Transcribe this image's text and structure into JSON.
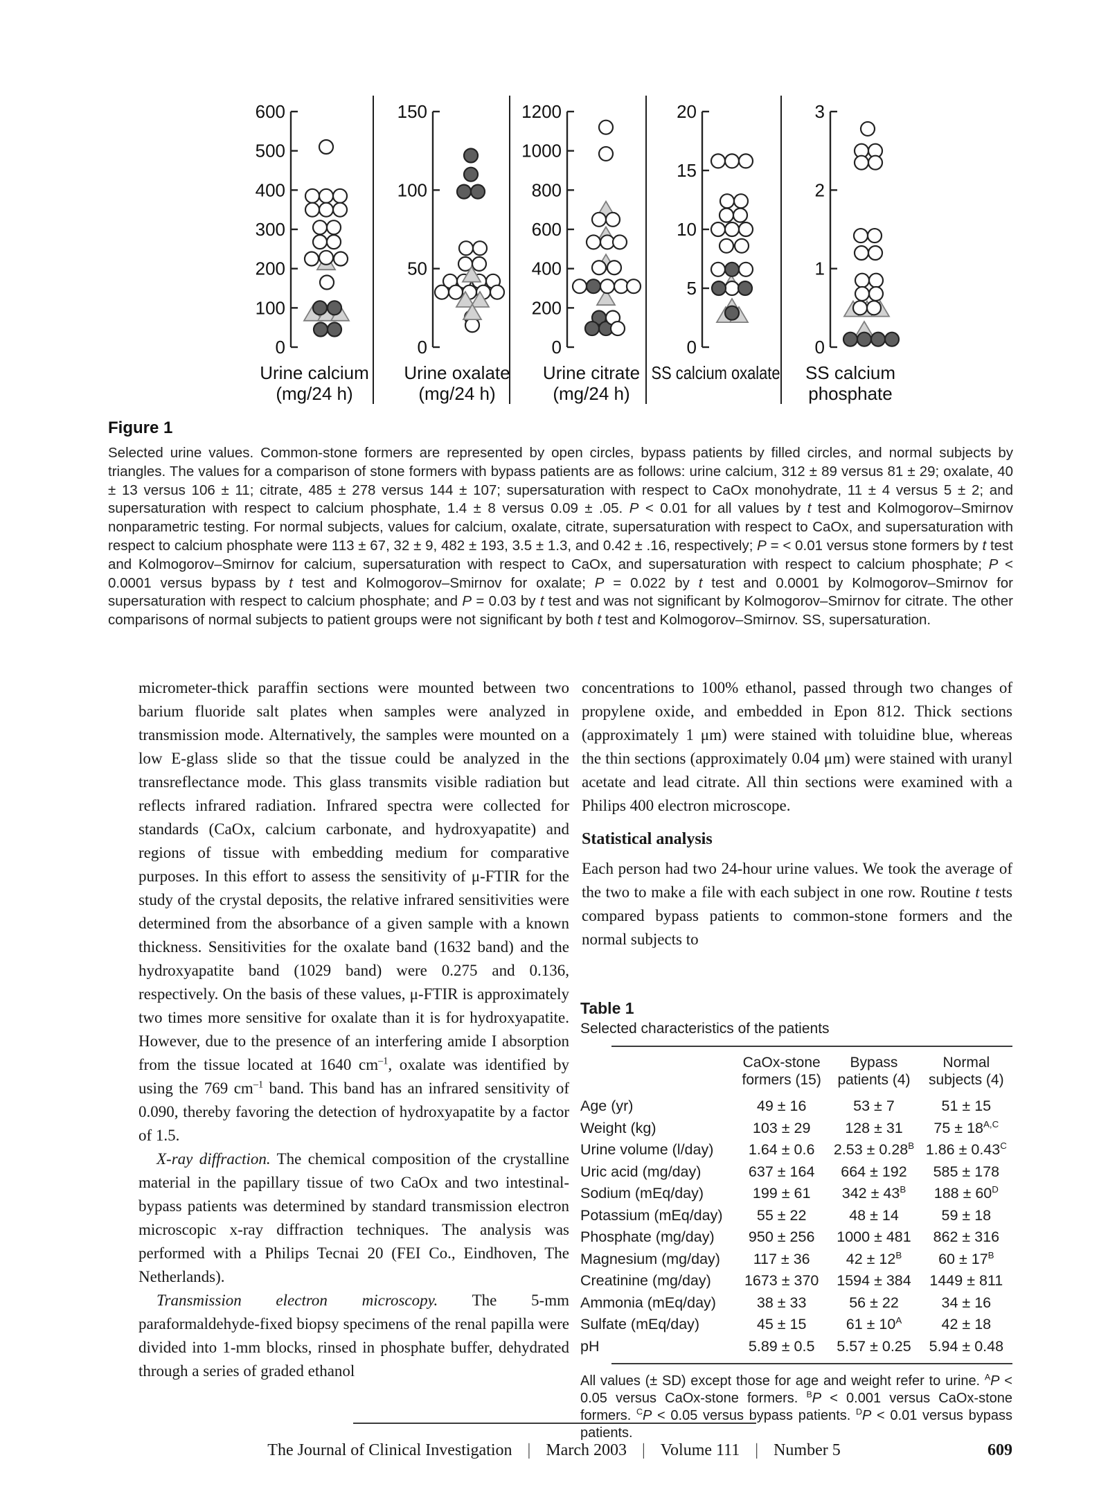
{
  "figure": {
    "caption_title": "Figure 1",
    "caption_text": "Selected urine values. Common-stone formers are represented by open circles, bypass patients by filled circles, and normal subjects by triangles. The values for a comparison of stone formers with bypass patients are as follows: urine calcium, 312 ± 89 versus 81 ± 29; oxalate, 40 ± 13 versus 106 ± 11; citrate, 485 ± 278 versus 144 ± 107; supersaturation with respect to CaOx monohydrate, 11 ± 4 versus 5 ± 2; and supersaturation with respect to calcium phosphate, 1.4 ± 8 versus 0.09 ± .05. _{P} < 0.01 for all values by _{t} test and Kolmogorov–Smirnov nonparametric testing. For normal subjects, values for calcium, oxalate, citrate, supersaturation with respect to CaOx, and supersaturation with respect to calcium phosphate were 113 ± 67, 32 ± 9, 482 ± 193, 3.5 ± 1.3, and 0.42 ± .16, respectively; _{P} = < 0.01 versus stone formers by _{t} test and Kolmogorov–Smirnov for calcium, supersaturation with respect to CaOx, and supersaturation with respect to calcium phosphate; _{P} < 0.0001 versus bypass by _{t} test and Kolmogorov–Smirnov for oxalate; _{P} = 0.022 by _{t} test and 0.0001 by Kolmogorov–Smirnov for supersaturation with respect to calcium phosphate; and _{P} = 0.03 by _{t} test and was not significant by Kolmogorov–Smirnov for citrate. The other comparisons of normal subjects to patient groups were not significant by both _{t} test and Kolmogorov–Smirnov. SS, supersaturation."
  },
  "chart_data": {
    "type": "scatter",
    "legend": {
      "open-circle": "Common-stone formers",
      "filled-circle": "Bypass patients",
      "triangle": "Normal subjects"
    },
    "colors": {
      "stroke": "#222222",
      "open_fill": "#ffffff",
      "bypass_fill": "#5e5e5e",
      "normal_fill": "#d2d2d2",
      "normal_stroke": "#7d7d7d"
    },
    "panels": [
      {
        "id": "urine-calcium",
        "xlabel_lines": [
          "Urine calcium",
          "(mg/24 h)"
        ],
        "ymax": 600,
        "yticks": [
          0,
          100,
          200,
          300,
          400,
          500,
          600
        ],
        "series": [
          {
            "group": "normal-subjects",
            "marker": "triangle",
            "points": [
              [
                215,
                0
              ],
              [
                85,
                -19
              ],
              [
                85,
                1
              ],
              [
                85,
                20
              ]
            ]
          },
          {
            "group": "stone-formers",
            "marker": "open-circle",
            "points": [
              [
                510,
                0
              ],
              [
                385,
                -20
              ],
              [
                385,
                0
              ],
              [
                385,
                20
              ],
              [
                350,
                -20
              ],
              [
                350,
                0
              ],
              [
                350,
                20
              ],
              [
                305,
                -9
              ],
              [
                305,
                11
              ],
              [
                268,
                -9
              ],
              [
                268,
                11
              ],
              [
                225,
                -21
              ],
              [
                228,
                0
              ],
              [
                225,
                21
              ],
              [
                165,
                1
              ]
            ]
          },
          {
            "group": "bypass-patients",
            "marker": "filled-circle",
            "points": [
              [
                100,
                -9
              ],
              [
                100,
                12
              ],
              [
                45,
                -8
              ],
              [
                45,
                12
              ]
            ]
          }
        ]
      },
      {
        "id": "urine-oxalate",
        "xlabel_lines": [
          "Urine oxalate",
          "(mg/24 h)"
        ],
        "ymax": 150,
        "yticks": [
          0,
          50,
          100,
          150
        ],
        "series": [
          {
            "group": "stone-formers",
            "marker": "open-circle",
            "points": [
              [
                63,
                -7
              ],
              [
                63,
                13
              ],
              [
                53,
                -8
              ],
              [
                53,
                12
              ],
              [
                42,
                -30
              ],
              [
                42,
                -10
              ],
              [
                42,
                12
              ],
              [
                42,
                32
              ],
              [
                35,
                -42
              ],
              [
                35,
                -22
              ],
              [
                35,
                -2
              ],
              [
                35,
                18
              ],
              [
                35,
                38
              ],
              [
                19,
                1
              ],
              [
                14,
                2
              ]
            ]
          },
          {
            "group": "bypass-patients",
            "marker": "filled-circle",
            "points": [
              [
                122,
                0
              ],
              [
                110,
                0
              ],
              [
                99,
                -10
              ],
              [
                99,
                10
              ]
            ]
          },
          {
            "group": "normal-subjects",
            "marker": "triangle",
            "points": [
              [
                46,
                1
              ],
              [
                30,
                -8
              ],
              [
                30,
                13
              ],
              [
                22,
                2
              ]
            ]
          }
        ]
      },
      {
        "id": "urine-citrate",
        "xlabel_lines": [
          "Urine citrate",
          "(mg/24 h)"
        ],
        "ymax": 1200,
        "yticks": [
          0,
          200,
          400,
          600,
          800,
          1000,
          1200
        ],
        "series": [
          {
            "group": "normal-subjects",
            "marker": "triangle",
            "points": [
              [
                700,
                1
              ],
              [
                570,
                1
              ],
              [
                430,
                1
              ],
              [
                250,
                1
              ]
            ]
          },
          {
            "group": "bypass-patients",
            "marker": "filled-circle",
            "points": [
              [
                310,
                -17
              ],
              [
                150,
                -9
              ],
              [
                95,
                -19
              ],
              [
                95,
                1
              ]
            ]
          },
          {
            "group": "stone-formers",
            "marker": "open-circle",
            "points": [
              [
                1120,
                1
              ],
              [
                985,
                1
              ],
              [
                650,
                -9
              ],
              [
                650,
                11
              ],
              [
                535,
                -17
              ],
              [
                535,
                3
              ],
              [
                535,
                21
              ],
              [
                405,
                -9
              ],
              [
                405,
                13
              ],
              [
                310,
                -37
              ],
              [
                310,
                3
              ],
              [
                310,
                23
              ],
              [
                310,
                41
              ],
              [
                150,
                11
              ],
              [
                95,
                18
              ]
            ]
          }
        ]
      },
      {
        "id": "ss-calcium-oxalate",
        "xlabel_lines": [
          "SS calcium oxalate"
        ],
        "ymax": 20,
        "yticks": [
          0,
          5,
          10,
          15,
          20
        ],
        "series": [
          {
            "group": "normal-subjects",
            "marker": "triangle",
            "points": [
              [
                5.4,
                -1
              ],
              [
                3.4,
                0
              ],
              [
                2.7,
                -9
              ],
              [
                2.7,
                10
              ]
            ]
          },
          {
            "group": "stone-formers",
            "marker": "open-circle",
            "points": [
              [
                15.8,
                -20
              ],
              [
                15.8,
                0
              ],
              [
                15.8,
                20
              ],
              [
                12.4,
                -7
              ],
              [
                12.4,
                13
              ],
              [
                11.2,
                -8
              ],
              [
                11.2,
                12
              ],
              [
                10,
                -20
              ],
              [
                10,
                0
              ],
              [
                10,
                20
              ],
              [
                8.6,
                -8
              ],
              [
                8.6,
                14
              ],
              [
                6.6,
                -20
              ],
              [
                6.6,
                20
              ],
              [
                5,
                0
              ]
            ]
          },
          {
            "group": "bypass-patients",
            "marker": "filled-circle",
            "points": [
              [
                6.6,
                0
              ],
              [
                5,
                -19
              ],
              [
                5,
                19
              ],
              [
                2.9,
                0
              ]
            ]
          }
        ]
      },
      {
        "id": "ss-calcium-phosphate",
        "xlabel_lines": [
          "SS calcium",
          "phosphate"
        ],
        "ymax": 3,
        "yticks": [
          0,
          1,
          2,
          3
        ],
        "series": [
          {
            "group": "normal-subjects",
            "marker": "triangle",
            "points": [
              [
                0.48,
                -26
              ],
              [
                0.48,
                -6
              ],
              [
                0.48,
                13
              ],
              [
                0.22,
                -10
              ]
            ]
          },
          {
            "group": "stone-formers",
            "marker": "open-circle",
            "points": [
              [
                2.78,
                -5
              ],
              [
                2.5,
                -14
              ],
              [
                2.5,
                6
              ],
              [
                2.35,
                -14
              ],
              [
                2.35,
                6
              ],
              [
                1.42,
                -15
              ],
              [
                1.42,
                5
              ],
              [
                1.2,
                -14
              ],
              [
                1.2,
                6
              ],
              [
                0.85,
                -13
              ],
              [
                0.85,
                7
              ],
              [
                0.68,
                -13
              ],
              [
                0.68,
                7
              ],
              [
                0.5,
                -16
              ],
              [
                0.5,
                4
              ]
            ]
          },
          {
            "group": "bypass-patients",
            "marker": "filled-circle",
            "points": [
              [
                0.1,
                -30
              ],
              [
                0.1,
                -10
              ],
              [
                0.1,
                10
              ],
              [
                0.1,
                30
              ]
            ]
          }
        ]
      }
    ]
  },
  "body": {
    "left": {
      "p1": "micrometer-thick paraffin sections were mounted between two barium fluoride salt plates when samples were analyzed in transmission mode. Alternatively, the samples were mounted on a low E-glass slide so that the tissue could be analyzed in the transreflectance mode. This glass transmits visible radiation but reflects infrared radiation. Infrared spectra were collected for standards (CaOx, calcium carbonate, and hydroxyapatite) and regions of tissue with embedding medium for comparative purposes. In this effort to assess the sensitivity of μ-FTIR for the study of the crystal deposits, the relative infrared sensitivities were determined from the absorbance of a given sample with a known thickness. Sensitivities for the oxalate band (1632 band) and the hydroxyapatite band (1029 band) were 0.275 and 0.136, respectively. On the basis of these values, μ-FTIR is approximately two times more sensitive for oxalate than it is for hydroxyapatite. However, due to the presence of an interfering amide I absorption from the tissue located at 1640 cm^{–1}, oxalate was identified by using the 769 cm^{–1} band. This band has an infrared sensitivity of 0.090, thereby favoring the detection of hydroxyapatite by a factor of 1.5.",
      "p2_lead": "X-ray diffraction.",
      "p2_text": " The chemical composition of the crystalline material in the papillary tissue of two CaOx and two intestinal-bypass patients was determined by standard transmission electron microscopic x-ray diffraction techniques. The analysis was performed with a Philips Tecnai 20 (FEI Co., Eindhoven, The Netherlands).",
      "p3_lead": "Transmission electron microscopy.",
      "p3_text": " The 5-mm paraformaldehyde-fixed biopsy specimens of the renal papilla were divided into 1-mm blocks, rinsed in phosphate buffer, dehydrated through a series of graded ethanol"
    },
    "right": {
      "p1": "concentrations to 100% ethanol, passed through two changes of propylene oxide, and embedded in Epon 812. Thick sections (approximately 1 μm) were stained with toluidine blue, whereas the thin sections (approximately 0.04 μm) were stained with uranyl acetate and lead citrate. All thin sections were examined with a Philips 400 electron microscope.",
      "heading": "Statistical analysis",
      "p2": "Each person had two 24-hour urine values. We took the average of the two to make a file with each subject in one row. Routine _{t} tests compared bypass patients to common-stone formers and the normal subjects to"
    }
  },
  "table": {
    "title": "Table 1",
    "subtitle": "Selected characteristics of the patients",
    "col_headers": [
      "CaOx-stone\nformers (15)",
      "Bypass\npatients (4)",
      "Normal\nsubjects (4)"
    ],
    "rows": [
      {
        "label": "Age (yr)",
        "values": [
          "49 ± 16",
          "53 ± 7",
          "51 ± 15"
        ]
      },
      {
        "label": "Weight (kg)",
        "values": [
          "103 ± 29",
          "128 ± 31",
          "75 ± 18^{A,C}"
        ]
      },
      {
        "label": "Urine volume (l/day)",
        "values": [
          "1.64 ± 0.6",
          "2.53 ± 0.28^{B}",
          "1.86 ± 0.43^{C}"
        ]
      },
      {
        "label": "Uric acid (mg/day)",
        "values": [
          "637 ± 164",
          "664 ± 192",
          "585 ± 178"
        ]
      },
      {
        "label": "Sodium (mEq/day)",
        "values": [
          "199 ± 61",
          "342 ± 43^{B}",
          "188 ± 60^{D}"
        ]
      },
      {
        "label": "Potassium (mEq/day)",
        "values": [
          "55 ± 22",
          "48 ± 14",
          "59 ± 18"
        ]
      },
      {
        "label": "Phosphate (mg/day)",
        "values": [
          "950 ± 256",
          "1000 ± 481",
          "862 ± 316"
        ]
      },
      {
        "label": "Magnesium (mg/day)",
        "values": [
          "117 ± 36",
          "42 ± 12^{B}",
          "60 ± 17^{B}"
        ]
      },
      {
        "label": "Creatinine (mg/day)",
        "values": [
          "1673 ± 370",
          "1594 ± 384",
          "1449 ± 811"
        ]
      },
      {
        "label": "Ammonia (mEq/day)",
        "values": [
          "38 ± 33",
          "56 ± 22",
          "34 ± 16"
        ]
      },
      {
        "label": "Sulfate (mEq/day)",
        "values": [
          "45 ± 15",
          "61 ± 10^{A}",
          "42 ± 18"
        ]
      },
      {
        "label": "pH",
        "values": [
          "5.89 ± 0.5",
          "5.57 ± 0.25",
          "5.94 ± 0.48"
        ]
      }
    ],
    "footnote": "All values (± SD) except those for age and weight refer to urine. ^{A}_{P} < 0.05 versus CaOx-stone formers. ^{B}_{P} < 0.001 versus CaOx-stone formers. ^{C}_{P} < 0.05 versus bypass patients. ^{D}_{P} < 0.01 versus bypass patients."
  },
  "footer": {
    "journal": "The Journal of Clinical Investigation",
    "separator": "|",
    "date": "March 2003",
    "volume": "Volume 111",
    "number": "Number 5",
    "page": "609"
  }
}
